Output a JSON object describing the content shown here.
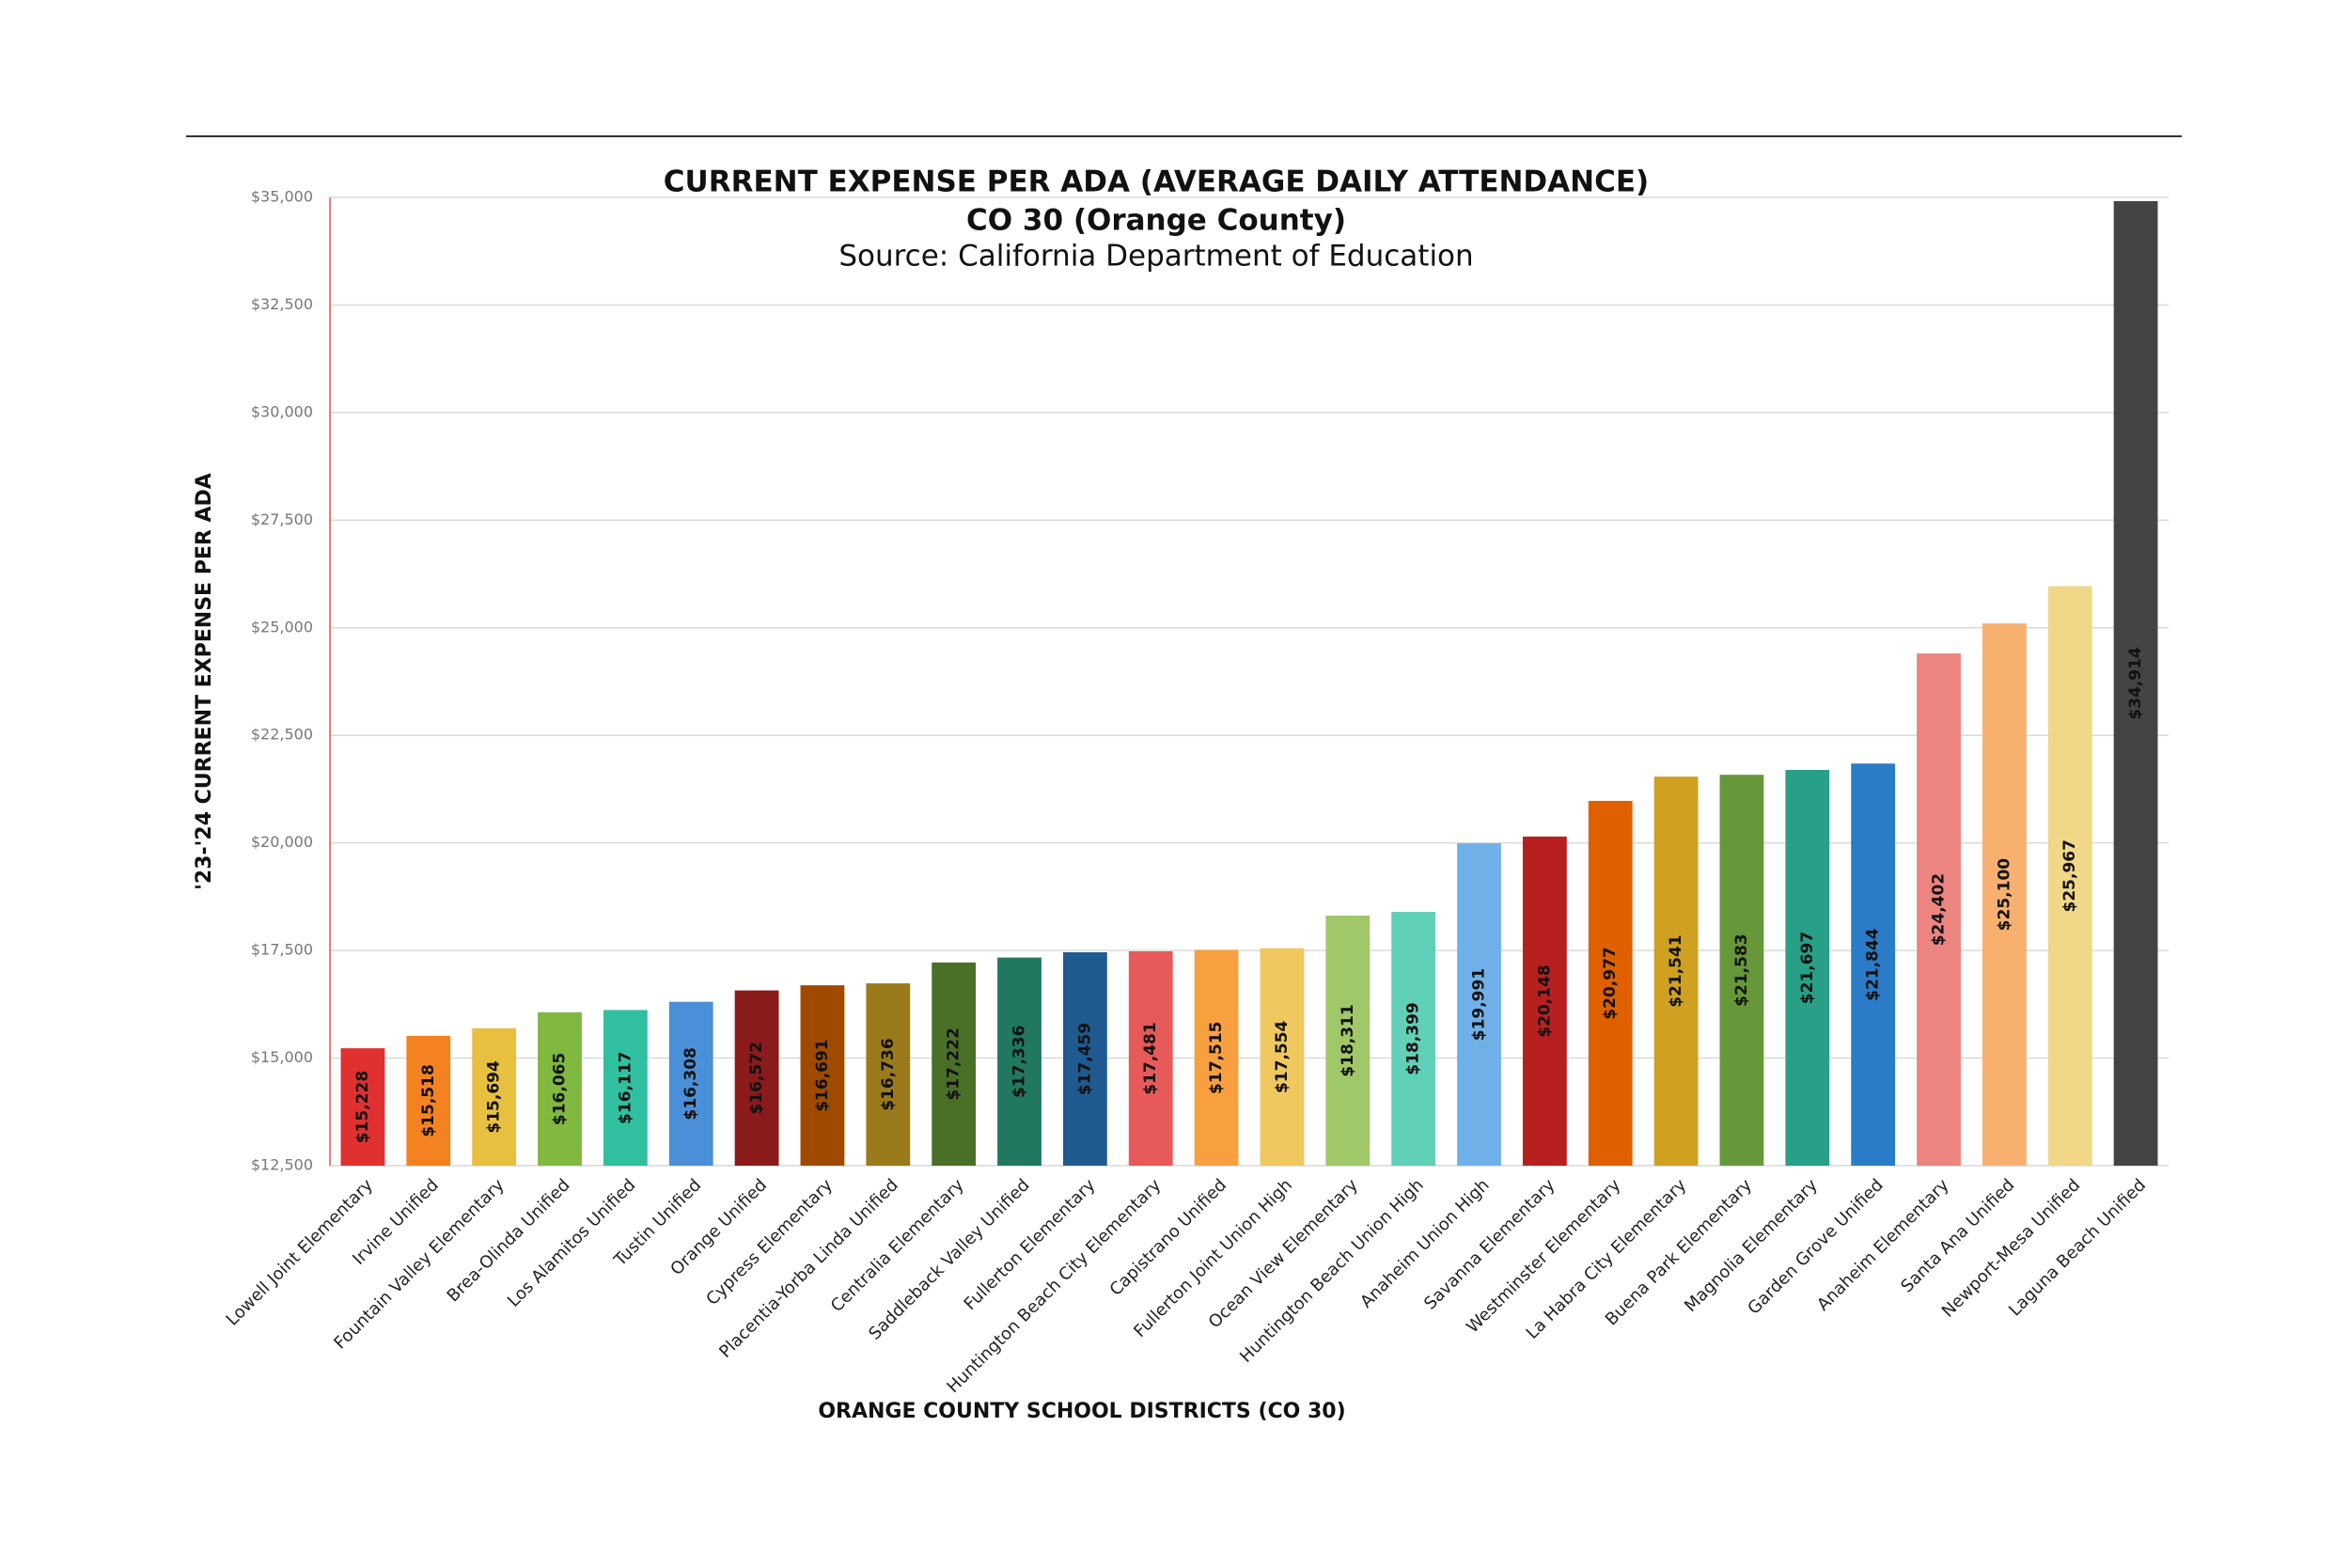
{
  "chart_data": {
    "type": "bar",
    "title": "CURRENT EXPENSE PER ADA (AVERAGE DAILY ATTENDANCE)",
    "subtitle": "CO 30 (Orange County)",
    "source": "Source: California Department of Education",
    "x_label": "ORANGE COUNTY SCHOOL DISTRICTS (CO 30)",
    "y_label": "'23-'24 CURRENT EXPENSE PER ADA",
    "categories": [
      "Lowell Joint Elementary",
      "Irvine Unified",
      "Fountain Valley Elementary",
      "Brea-Olinda Unified",
      "Los Alamitos Unified",
      "Tustin Unified",
      "Orange Unified",
      "Cypress Elementary",
      "Placentia-Yorba Linda Unified",
      "Centralia Elementary",
      "Saddleback Valley Unified",
      "Fullerton Elementary",
      "Huntington Beach City Elementary",
      "Capistrano Unified",
      "Fullerton Joint Union High",
      "Ocean View Elementary",
      "Huntington Beach Union High",
      "Anaheim Union High",
      "Savanna Elementary",
      "Westminster Elementary",
      "La Habra City Elementary",
      "Buena Park Elementary",
      "Magnolia Elementary",
      "Garden Grove Unified",
      "Anaheim Elementary",
      "Santa Ana Unified",
      "Newport-Mesa Unified",
      "Laguna Beach Unified"
    ],
    "values": [
      15228,
      15518,
      15694,
      16065,
      16117,
      16308,
      16572,
      16691,
      16736,
      17222,
      17336,
      17459,
      17481,
      17515,
      17554,
      18311,
      18399,
      19991,
      20148,
      20977,
      21541,
      21583,
      21697,
      21844,
      24402,
      25100,
      25967,
      34914
    ],
    "value_labels": [
      "$15,228",
      "$15,518",
      "$15,694",
      "$16,065",
      "$16,117",
      "$16,308",
      "$16,572",
      "$16,691",
      "$16,736",
      "$17,222",
      "$17,336",
      "$17,459",
      "$17,481",
      "$17,515",
      "$17,554",
      "$18,311",
      "$18,399",
      "$19,991",
      "$20,148",
      "$20,977",
      "$21,541",
      "$21,583",
      "$21,697",
      "$21,844",
      "$24,402",
      "$25,100",
      "$25,967",
      "$34,914"
    ],
    "colors": [
      "#e03030",
      "#f58220",
      "#e8c040",
      "#80b840",
      "#30c0a0",
      "#4a90d8",
      "#8b1a1a",
      "#a04a00",
      "#9a7a1a",
      "#4a7028",
      "#207860",
      "#1f5a90",
      "#e85a5a",
      "#f8a040",
      "#f0c860",
      "#a0c868",
      "#60d0b8",
      "#70b0e8",
      "#b82020",
      "#e06000",
      "#d0a020",
      "#66983a",
      "#28a088",
      "#2a7cc8",
      "#ec8480",
      "#f8b070",
      "#f0d888",
      "#444444"
    ],
    "ylim": [
      12500,
      35000
    ],
    "yticks": [
      {
        "value": 12500,
        "label": "$12,500"
      },
      {
        "value": 15000,
        "label": "$15,000"
      },
      {
        "value": 17500,
        "label": "$17,500"
      },
      {
        "value": 20000,
        "label": "$20,000"
      },
      {
        "value": 22500,
        "label": "$22,500"
      },
      {
        "value": 25000,
        "label": "$25,000"
      },
      {
        "value": 27500,
        "label": "$27,500"
      },
      {
        "value": 30000,
        "label": "$30,000"
      },
      {
        "value": 32500,
        "label": "$32,500"
      },
      {
        "value": 35000,
        "label": "$35,000"
      }
    ],
    "grid": true
  }
}
